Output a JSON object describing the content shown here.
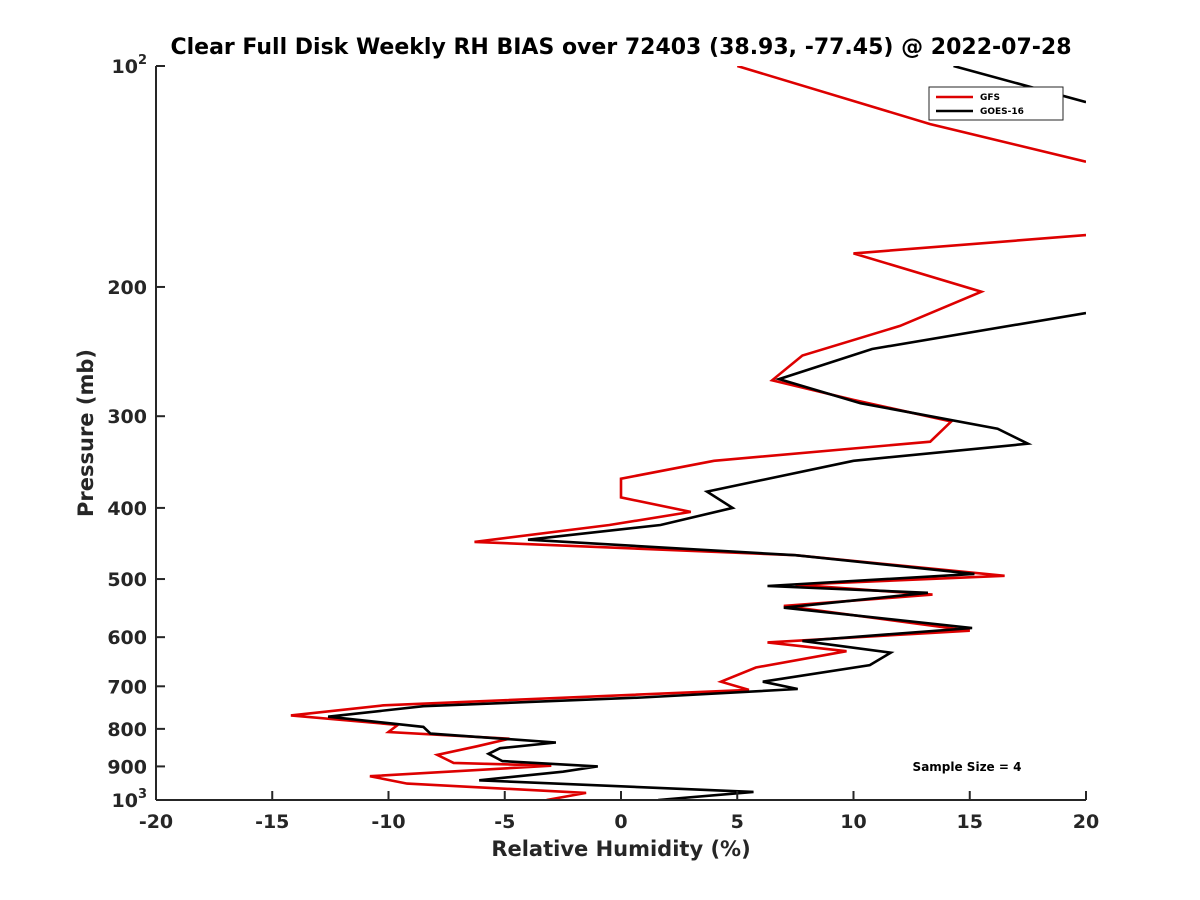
{
  "chart_data": {
    "type": "line",
    "title": "Clear Full Disk Weekly RH BIAS over 72403 (38.93, -77.45) @ 2022-07-28",
    "xlabel": "Relative Humidity (%)",
    "ylabel": "Pressure (mb)",
    "xlim": [
      -20,
      20
    ],
    "ylim": [
      100,
      1000
    ],
    "y_scale": "log",
    "y_reversed": true,
    "x_ticks": [
      "-20",
      "-15",
      "-10",
      "-5",
      "0",
      "5",
      "10",
      "15",
      "20"
    ],
    "y_ticks": [
      {
        "base": "10",
        "exp": "2",
        "value": 100
      },
      {
        "base": "200",
        "exp": "",
        "value": 200
      },
      {
        "base": "300",
        "exp": "",
        "value": 300
      },
      {
        "base": "400",
        "exp": "",
        "value": 400
      },
      {
        "base": "500",
        "exp": "",
        "value": 500
      },
      {
        "base": "600",
        "exp": "",
        "value": 600
      },
      {
        "base": "700",
        "exp": "",
        "value": 700
      },
      {
        "base": "800",
        "exp": "",
        "value": 800
      },
      {
        "base": "900",
        "exp": "",
        "value": 900
      },
      {
        "base": "10",
        "exp": "3",
        "value": 1000
      }
    ],
    "grid": false,
    "legend_position": "top-right",
    "annotation": "Sample Size = 4",
    "series": [
      {
        "name": "GFS",
        "color": "#dd0000",
        "segments": [
          [
            {
              "x": 5.0,
              "p": 100
            },
            {
              "x": 13.3,
              "p": 120
            },
            {
              "x": 20.0,
              "p": 135
            }
          ],
          [
            {
              "x": 20.0,
              "p": 170
            },
            {
              "x": 10.0,
              "p": 180
            },
            {
              "x": 15.5,
              "p": 203
            },
            {
              "x": 12.0,
              "p": 226
            },
            {
              "x": 7.8,
              "p": 248
            },
            {
              "x": 6.5,
              "p": 268
            },
            {
              "x": 10.0,
              "p": 285
            },
            {
              "x": 14.2,
              "p": 305
            },
            {
              "x": 13.3,
              "p": 325
            },
            {
              "x": 4.0,
              "p": 345
            },
            {
              "x": 0.0,
              "p": 365
            },
            {
              "x": 0.0,
              "p": 387
            },
            {
              "x": 3.0,
              "p": 405
            },
            {
              "x": -0.5,
              "p": 422
            },
            {
              "x": -6.3,
              "p": 445
            },
            {
              "x": 7.5,
              "p": 464
            },
            {
              "x": 16.5,
              "p": 495
            },
            {
              "x": 7.5,
              "p": 509
            },
            {
              "x": 13.4,
              "p": 525
            },
            {
              "x": 7.0,
              "p": 544
            },
            {
              "x": 15.0,
              "p": 588
            },
            {
              "x": 6.3,
              "p": 610
            },
            {
              "x": 9.7,
              "p": 627
            },
            {
              "x": 5.8,
              "p": 660
            },
            {
              "x": 4.3,
              "p": 690
            },
            {
              "x": 5.5,
              "p": 708
            },
            {
              "x": -10.2,
              "p": 743
            },
            {
              "x": -14.2,
              "p": 767
            },
            {
              "x": -9.6,
              "p": 790
            },
            {
              "x": -10.0,
              "p": 808
            },
            {
              "x": -4.8,
              "p": 825
            },
            {
              "x": -6.2,
              "p": 845
            },
            {
              "x": -7.9,
              "p": 868
            },
            {
              "x": -7.2,
              "p": 890
            },
            {
              "x": -3.0,
              "p": 898
            },
            {
              "x": -10.8,
              "p": 928
            },
            {
              "x": -9.2,
              "p": 950
            },
            {
              "x": -1.5,
              "p": 978
            },
            {
              "x": -3.2,
              "p": 1000
            }
          ]
        ]
      },
      {
        "name": "GOES-16",
        "color": "#000000",
        "segments": [
          [
            {
              "x": 14.3,
              "p": 100
            },
            {
              "x": 20.0,
              "p": 112
            }
          ],
          [
            {
              "x": 20.0,
              "p": 217
            },
            {
              "x": 10.8,
              "p": 243
            },
            {
              "x": 6.8,
              "p": 267
            },
            {
              "x": 10.3,
              "p": 288
            },
            {
              "x": 16.2,
              "p": 312
            },
            {
              "x": 17.5,
              "p": 327
            },
            {
              "x": 10.0,
              "p": 345
            },
            {
              "x": 3.7,
              "p": 380
            },
            {
              "x": 4.8,
              "p": 400
            },
            {
              "x": 1.7,
              "p": 422
            },
            {
              "x": -4.0,
              "p": 442
            },
            {
              "x": 7.5,
              "p": 464
            },
            {
              "x": 15.2,
              "p": 492
            },
            {
              "x": 6.3,
              "p": 511
            },
            {
              "x": 13.2,
              "p": 522
            },
            {
              "x": 7.0,
              "p": 547
            },
            {
              "x": 15.1,
              "p": 583
            },
            {
              "x": 7.8,
              "p": 607
            },
            {
              "x": 11.6,
              "p": 630
            },
            {
              "x": 10.7,
              "p": 655
            },
            {
              "x": 6.1,
              "p": 690
            },
            {
              "x": 7.6,
              "p": 706
            },
            {
              "x": 0.9,
              "p": 725
            },
            {
              "x": -8.5,
              "p": 745
            },
            {
              "x": -12.6,
              "p": 770
            },
            {
              "x": -8.5,
              "p": 795
            },
            {
              "x": -8.2,
              "p": 812
            },
            {
              "x": -2.8,
              "p": 835
            },
            {
              "x": -5.2,
              "p": 850
            },
            {
              "x": -5.7,
              "p": 865
            },
            {
              "x": -5.1,
              "p": 885
            },
            {
              "x": -1.0,
              "p": 900
            },
            {
              "x": -2.5,
              "p": 915
            },
            {
              "x": -6.1,
              "p": 940
            },
            {
              "x": 5.7,
              "p": 975
            },
            {
              "x": 1.6,
              "p": 1000
            }
          ]
        ]
      }
    ]
  }
}
